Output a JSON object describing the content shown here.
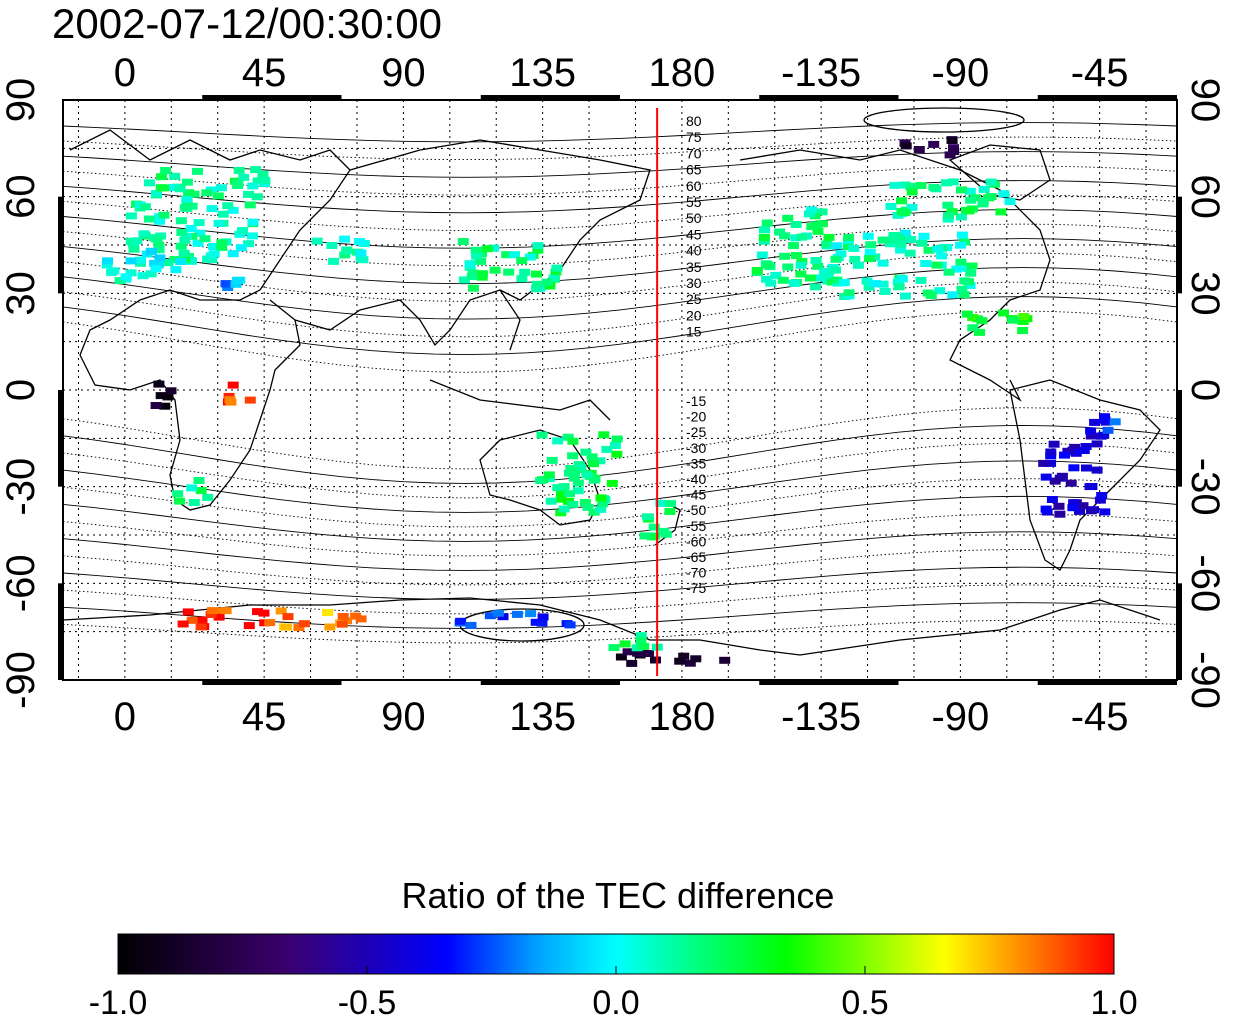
{
  "title": "2002-07-12/00:30:00",
  "axes": {
    "lon_ticks": [
      "0",
      "45",
      "90",
      "135",
      "180",
      "-135",
      "-90",
      "-45"
    ],
    "lat_ticks_left": [
      "90",
      "60",
      "30",
      "0",
      "-30",
      "-60",
      "-90"
    ],
    "lat_ticks_right": [
      "90",
      "60",
      "30",
      "0",
      "-30",
      "-60",
      "-90"
    ],
    "lon_range": [
      -20,
      340
    ],
    "lat_range": [
      -90,
      90
    ]
  },
  "meridian_line": {
    "lon": 172,
    "color": "#ff0000"
  },
  "contour_labels_north": [
    "80",
    "75",
    "70",
    "65",
    "60",
    "55",
    "50",
    "45",
    "40",
    "35",
    "30",
    "25",
    "20",
    "15"
  ],
  "contour_labels_south": [
    "-15",
    "-20",
    "-25",
    "-30",
    "-35",
    "-40",
    "-45",
    "-50",
    "-55",
    "-60",
    "-65",
    "-70",
    "-75"
  ],
  "colorbar": {
    "title": "Ratio of the TEC difference",
    "ticks": [
      "-1.0",
      "-0.5",
      "0.0",
      "0.5",
      "1.0"
    ],
    "range": [
      -1.0,
      1.0
    ],
    "colormap": [
      "#000000",
      "#3a006e",
      "#0000ff",
      "#00ffff",
      "#00ff00",
      "#ffff00",
      "#ff0000"
    ]
  },
  "chart_data": {
    "type": "heatmap",
    "title": "2002-07-12/00:30:00",
    "xlabel": "",
    "ylabel": "",
    "x_range": [
      -20,
      340
    ],
    "y_range": [
      -90,
      90
    ],
    "value_label": "Ratio of the TEC difference",
    "value_range": [
      -1.0,
      1.0
    ],
    "grid": true,
    "cells": [
      {
        "lon": 20,
        "lat": 50,
        "w": 40,
        "h": 20,
        "v": 0.1
      },
      {
        "lon": 25,
        "lat": 65,
        "w": 40,
        "h": 10,
        "v": 0.15
      },
      {
        "lon": 5,
        "lat": 40,
        "w": 25,
        "h": 10,
        "v": 0.05
      },
      {
        "lon": 35,
        "lat": 35,
        "w": 10,
        "h": 6,
        "v": -0.15
      },
      {
        "lon": 70,
        "lat": 45,
        "w": 20,
        "h": 8,
        "v": 0.1
      },
      {
        "lon": 120,
        "lat": 40,
        "w": 25,
        "h": 15,
        "v": 0.15
      },
      {
        "lon": 135,
        "lat": 35,
        "w": 10,
        "h": 8,
        "v": 0.2
      },
      {
        "lon": 215,
        "lat": 45,
        "w": 25,
        "h": 25,
        "v": 0.15
      },
      {
        "lon": 250,
        "lat": 40,
        "w": 45,
        "h": 20,
        "v": 0.1
      },
      {
        "lon": 265,
        "lat": 60,
        "w": 40,
        "h": 12,
        "v": 0.15
      },
      {
        "lon": 260,
        "lat": 76,
        "w": 20,
        "h": 6,
        "v": -0.8
      },
      {
        "lon": 280,
        "lat": 22,
        "w": 20,
        "h": 8,
        "v": 0.3
      },
      {
        "lon": 12,
        "lat": 0,
        "w": 8,
        "h": 8,
        "v": -0.9
      },
      {
        "lon": 35,
        "lat": 0,
        "w": 8,
        "h": 6,
        "v": 0.9
      },
      {
        "lon": 145,
        "lat": -25,
        "w": 25,
        "h": 25,
        "v": 0.2
      },
      {
        "lon": 172,
        "lat": -40,
        "w": 12,
        "h": 12,
        "v": 0.15
      },
      {
        "lon": 305,
        "lat": -25,
        "w": 20,
        "h": 25,
        "v": -0.45
      },
      {
        "lon": 315,
        "lat": -10,
        "w": 10,
        "h": 10,
        "v": -0.3
      },
      {
        "lon": 20,
        "lat": -30,
        "w": 10,
        "h": 8,
        "v": 0.15
      },
      {
        "lon": 30,
        "lat": -70,
        "w": 30,
        "h": 6,
        "v": 0.95
      },
      {
        "lon": 60,
        "lat": -70,
        "w": 30,
        "h": 6,
        "v": 0.8
      },
      {
        "lon": 125,
        "lat": -70,
        "w": 40,
        "h": 4,
        "v": -0.3
      },
      {
        "lon": 175,
        "lat": -82,
        "w": 35,
        "h": 4,
        "v": -0.85
      },
      {
        "lon": 165,
        "lat": -77,
        "w": 25,
        "h": 4,
        "v": 0.2
      }
    ]
  }
}
